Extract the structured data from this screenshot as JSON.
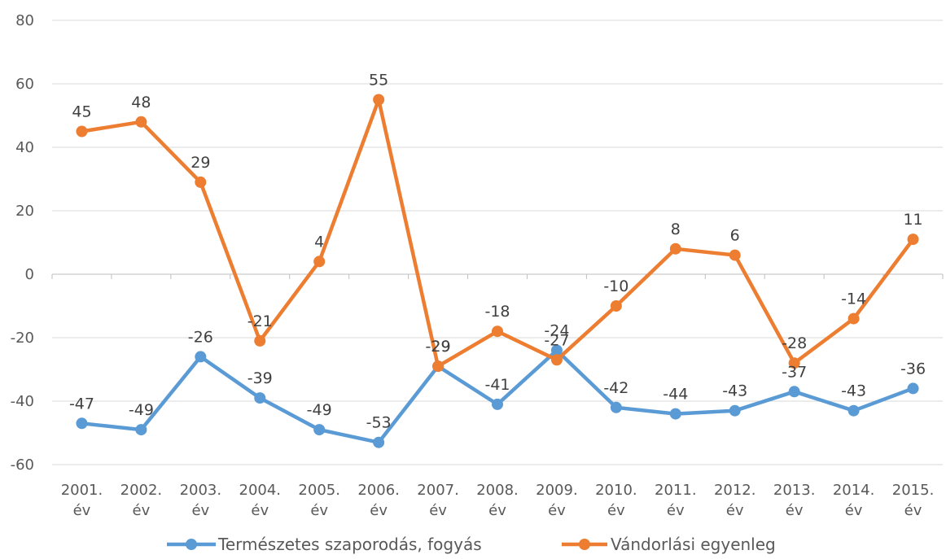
{
  "chart_data": {
    "type": "line",
    "categories": [
      "2001. év",
      "2002. év",
      "2003. év",
      "2004. év",
      "2005. év",
      "2006. év",
      "2007. év",
      "2008. év",
      "2009. év",
      "2010. év",
      "2011. év",
      "2012. év",
      "2013. év",
      "2014. év",
      "2015. év"
    ],
    "series": [
      {
        "name": "Természetes szaporodás, fogyás",
        "color": "#5B9BD5",
        "values": [
          -47,
          -49,
          -26,
          -39,
          -49,
          -53,
          -29,
          -41,
          -24,
          -42,
          -44,
          -43,
          -37,
          -43,
          -36
        ]
      },
      {
        "name": "Vándorlási egyenleg",
        "color": "#ED7D31",
        "values": [
          45,
          48,
          29,
          -21,
          4,
          55,
          -29,
          -18,
          -27,
          -10,
          8,
          6,
          -28,
          -14,
          11
        ]
      }
    ],
    "ylim": [
      -60,
      80
    ],
    "yticks": [
      -60,
      -40,
      -20,
      0,
      20,
      40,
      60,
      80
    ],
    "grid": true,
    "legend": "bottom"
  }
}
